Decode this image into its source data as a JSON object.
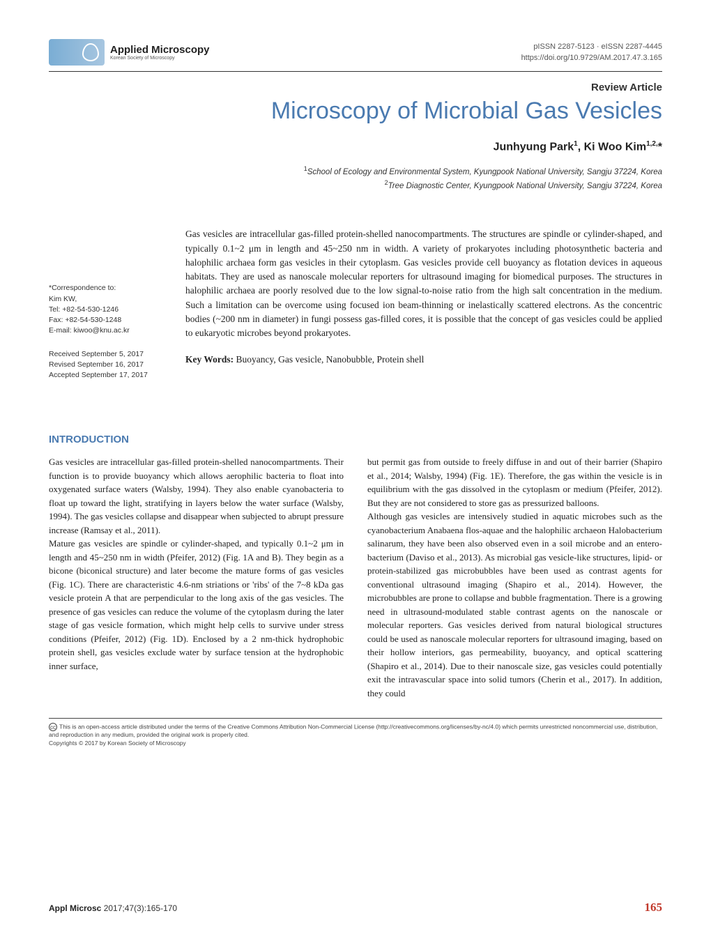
{
  "header": {
    "journal_name": "Applied Microscopy",
    "journal_sub": "Korean Society of Microscopy",
    "issn": "pISSN 2287-5123 · eISSN 2287-4445",
    "doi": "https://doi.org/10.9729/AM.2017.47.3.165"
  },
  "article": {
    "type": "Review Article",
    "title": "Microscopy of Microbial Gas Vesicles",
    "authors_html": "Junhyung Park<sup>1</sup>, Ki Woo Kim<sup>1,2,</sup>*",
    "affil1": "School of Ecology and Environmental System, Kyungpook National University, Sangju 37224, Korea",
    "affil2": "Tree Diagnostic Center, Kyungpook National University, Sangju 37224, Korea"
  },
  "correspondence": {
    "label": "*Correspondence to:",
    "name": "Kim KW,",
    "tel": "Tel: +82-54-530-1246",
    "fax": "Fax: +82-54-530-1248",
    "email": "E-mail: kiwoo@knu.ac.kr"
  },
  "dates": {
    "received": "Received September 5, 2017",
    "revised": "Revised September 16, 2017",
    "accepted": "Accepted September 17, 2017"
  },
  "abstract": "Gas vesicles are intracellular gas-filled protein-shelled nanocompartments. The structures are spindle or cylinder-shaped, and typically 0.1~2 μm in length and 45~250 nm in width. A variety of prokaryotes including photosynthetic bacteria and halophilic archaea form gas vesicles in their cytoplasm. Gas vesicles provide cell buoyancy as flotation devices in aqueous habitats. They are used as nanoscale molecular reporters for ultrasound imaging for biomedical purposes. The structures in halophilic archaea are poorly resolved due to the low signal-to-noise ratio from the high salt concentration in the medium. Such a limitation can be overcome using focused ion beam-thinning or inelastically scattered electrons. As the concentric bodies (~200 nm in diameter) in fungi possess gas-filled cores, it is possible that the concept of gas vesicles could be applied to eukaryotic microbes beyond prokaryotes.",
  "keywords": {
    "label": "Key Words:",
    "text": " Buoyancy, Gas vesicle, Nanobubble, Protein shell"
  },
  "section_heading": "INTRODUCTION",
  "body": {
    "col1_p1": "Gas vesicles are intracellular gas-filled protein-shelled nanocompartments. Their function is to provide buoyancy which allows aerophilic bacteria to float into oxygenated surface waters (Walsby, 1994). They also enable cyanobacteria to float up toward the light, stratifying in layers below the water surface (Walsby, 1994). The gas vesicles collapse and disappear when subjected to abrupt pressure increase (Ramsay et al., 2011).",
    "col1_p2": "Mature gas vesicles are spindle or cylinder-shaped, and typically 0.1~2 μm in length and 45~250 nm in width (Pfeifer, 2012) (Fig. 1A and B). They begin as a bicone (biconical structure) and later become the mature forms of gas vesicles (Fig. 1C). There are characteristic 4.6-nm striations or 'ribs' of the 7~8 kDa gas vesicle protein A that are perpendicular to the long axis of the gas vesicles. The presence of gas vesicles can reduce the volume of the cytoplasm during the later stage of gas vesicle formation, which might help cells to survive under stress conditions (Pfeifer, 2012) (Fig. 1D). Enclosed by a 2 nm-thick hydrophobic protein shell, gas vesicles exclude water by surface tension at the hydrophobic inner surface,",
    "col2_p1": "but permit gas from outside to freely diffuse in and out of their barrier (Shapiro et al., 2014; Walsby, 1994) (Fig. 1E). Therefore, the gas within the vesicle is in equilibrium with the gas dissolved in the cytoplasm or medium (Pfeifer, 2012). But they are not considered to store gas as pressurized balloons.",
    "col2_p2": "Although gas vesicles are intensively studied in aquatic microbes such as the cyanobacterium Anabaena flos-aquae and the halophilic archaeon Halobacterium salinarum, they have been also observed even in a soil microbe and an entero­bacterium (Daviso et al., 2013). As microbial gas vesicle-like structures, lipid- or protein-stabilized gas microbubbles have been used as contrast agents for conventional ultrasound imaging (Shapiro et al., 2014). However, the microbubbles are prone to collapse and bubble fragmentation. There is a growing need in ultrasound-modulated stable contrast agents on the nanoscale or molecular reporters. Gas vesicles derived from natural biological structures could be used as nanoscale molecular reporters for ultrasound imaging, based on their hollow interiors, gas permeability, buoyancy, and optical scattering (Shapiro et al., 2014). Due to their nanoscale size, gas vesicles could potentially exit the intravascular space into solid tumors (Cherin et al., 2017). In addition, they could"
  },
  "license": {
    "text": "This is an open-access article distributed under the terms of the Creative Commons Attribution Non-Commercial License (http://creativecommons.org/licenses/by-nc/4.0) which permits unrestricted noncommercial use, distribution, and reproduction in any medium, provided the original work is properly cited.",
    "copyright": "Copyrights © 2017 by Korean Society of Microscopy"
  },
  "footer": {
    "journal": "Appl Microsc ",
    "citation": "2017;47(3):165-170",
    "page": "165"
  },
  "colors": {
    "accent_blue": "#4a7ab0",
    "accent_red": "#c1392b",
    "text": "#222222",
    "meta_text": "#555555"
  }
}
